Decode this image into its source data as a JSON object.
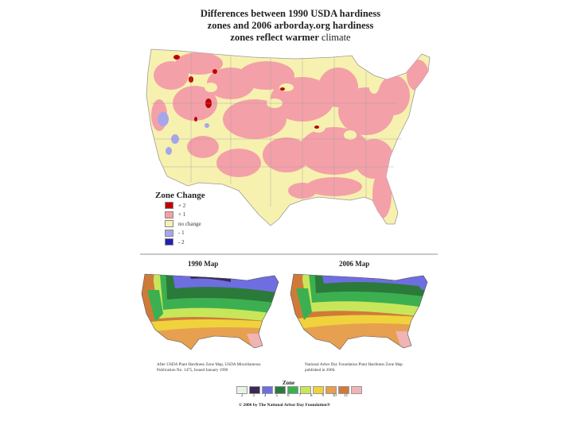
{
  "title": {
    "line1": "Differences between 1990 USDA hardiness",
    "line2": "zones and 2006 arborday.org hardiness",
    "line3_bold": "zones reflect warmer",
    "line3_light": "climate"
  },
  "legend": {
    "title": "Zone Change",
    "items": [
      {
        "label": "+ 2",
        "color": "#c00000"
      },
      {
        "label": "+ 1",
        "color": "#f4a0a8"
      },
      {
        "label": "no change",
        "color": "#f7f1b0"
      },
      {
        "label": "- 1",
        "color": "#a6a6ec"
      },
      {
        "label": "- 2",
        "color": "#2020b8"
      }
    ]
  },
  "maps": {
    "left_title": "1990 Map",
    "right_title": "2006 Map",
    "left_credit": "After USDA Plant Hardiness Zone Map, USDA Miscellaneous Publication No. 1475, Issued January 1990",
    "right_credit": "National Arbor Day Foundation Plant Hardiness Zone Map published in 2006."
  },
  "zone_scale": {
    "title": "Zone",
    "zones": [
      {
        "label": "2",
        "color": "#e6f2e6"
      },
      {
        "label": "3",
        "color": "#3a2a58"
      },
      {
        "label": "4",
        "color": "#6e6ee0"
      },
      {
        "label": "5",
        "color": "#2b7a3a"
      },
      {
        "label": "6",
        "color": "#3cb050"
      },
      {
        "label": "7",
        "color": "#c8e65a"
      },
      {
        "label": "8",
        "color": "#f0d23c"
      },
      {
        "label": "9",
        "color": "#e6a050"
      },
      {
        "label": "10",
        "color": "#d07a3a"
      },
      {
        "label": "11",
        "color": "#f0b4b4"
      }
    ]
  },
  "copyright": "© 2006 by The National Arbor Day Foundation®"
}
